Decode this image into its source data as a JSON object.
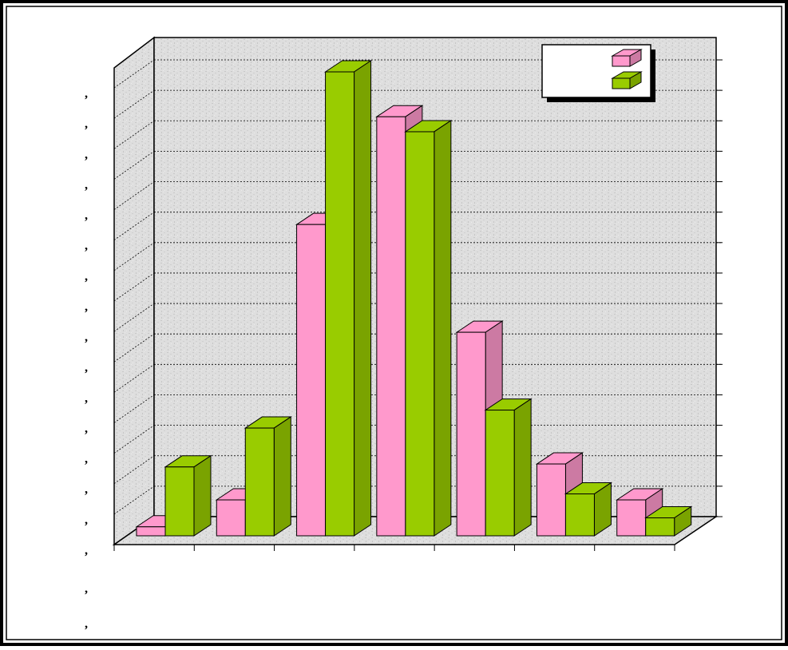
{
  "chart_data": {
    "type": "bar",
    "subtype": "3d-clustered-column",
    "categories": [
      "",
      "",
      "",
      "",
      "",
      "",
      ""
    ],
    "series": [
      {
        "color": "#ff99cc",
        "values": [
          0.3,
          1.2,
          10.4,
          14.0,
          6.8,
          2.4,
          1.2
        ]
      },
      {
        "color": "#99cc00",
        "values": [
          2.3,
          3.6,
          15.5,
          13.5,
          4.2,
          1.4,
          0.6
        ]
      }
    ],
    "ylim": [
      0,
      15.5
    ],
    "yticks": 16,
    "ytick_labels": [
      ",",
      ",",
      ",",
      ",",
      ",",
      ",",
      ",",
      ",",
      ",",
      ",",
      ",",
      ",",
      ",",
      ",",
      ",",
      ","
    ],
    "extra_labels": [
      ",",
      ","
    ],
    "grid": true,
    "legend": {
      "position": "top-right",
      "entries": [
        "",
        ""
      ]
    },
    "colors": {
      "wall": "#dcdcdc",
      "frame": "#000000",
      "background": "#ffffff"
    }
  }
}
